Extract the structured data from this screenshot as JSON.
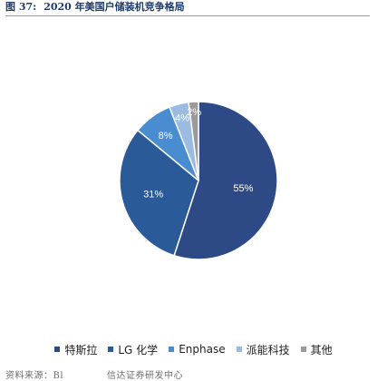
{
  "figure": {
    "number": "图 37:",
    "title": "2020 年美国户储装机竞争格局"
  },
  "footer": {
    "source": "资料来源：Bl",
    "note": "信达证券研发中心"
  },
  "chart_data": {
    "type": "pie",
    "categories": [
      "特斯拉",
      "LG 化学",
      "Enphase",
      "派能科技",
      "其他"
    ],
    "values": [
      55,
      31,
      8,
      4,
      2
    ],
    "value_labels": [
      "55%",
      "31%",
      "8%",
      "4%",
      "2%"
    ],
    "colors": [
      "#2d4a87",
      "#2a5a98",
      "#4a8cd0",
      "#9bbce0",
      "#9a9a9a"
    ],
    "legend_position": "bottom",
    "start_angle": "12 o'clock",
    "direction": "clockwise"
  }
}
